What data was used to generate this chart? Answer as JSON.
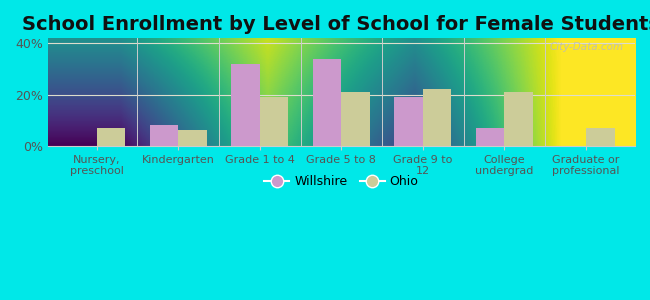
{
  "title": "School Enrollment by Level of School for Female Students",
  "categories": [
    "Nursery,\npreschool",
    "Kindergarten",
    "Grade 1 to 4",
    "Grade 5 to 8",
    "Grade 9 to\n12",
    "College\nundergrad",
    "Graduate or\nprofessional"
  ],
  "willshire": [
    0,
    8,
    32,
    34,
    19,
    7,
    0
  ],
  "ohio": [
    7,
    6,
    19,
    21,
    22,
    21,
    7
  ],
  "willshire_color": "#cc99cc",
  "ohio_color": "#cccc99",
  "background_outer": "#00e8e8",
  "background_inner": "#eef8ee",
  "ylim": [
    0,
    42
  ],
  "yticks": [
    0,
    20,
    40
  ],
  "ytick_labels": [
    "0%",
    "20%",
    "40%"
  ],
  "title_fontsize": 14,
  "legend_labels": [
    "Willshire",
    "Ohio"
  ],
  "bar_width": 0.35,
  "grid_color": "#ddddcc",
  "spine_color": "#cccccc",
  "tick_label_color": "#555555",
  "watermark_color": "#bbbbbb"
}
